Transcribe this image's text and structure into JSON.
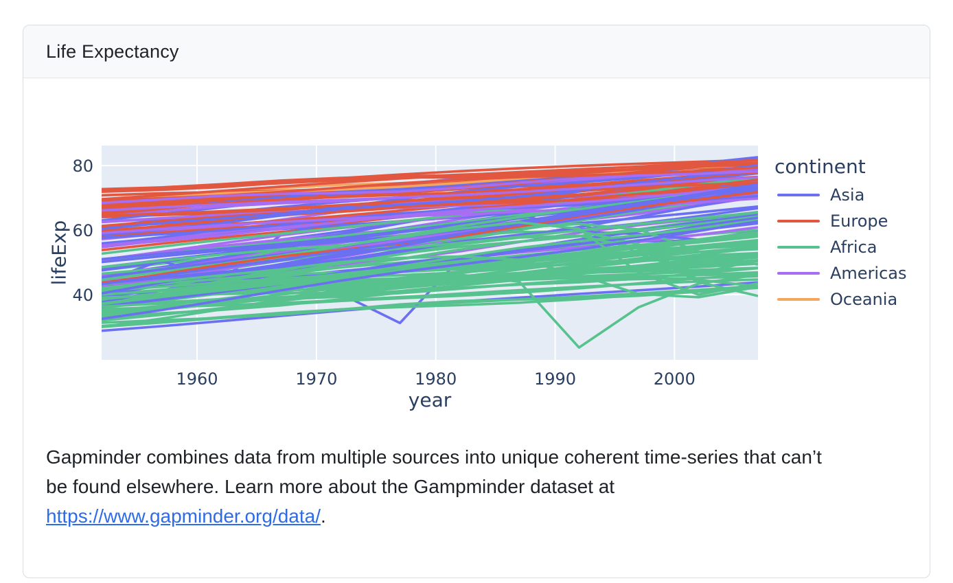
{
  "card": {
    "title": "Life Expectancy"
  },
  "description": {
    "text_before_link": "Gapminder combines data from multiple sources into unique coherent time-series that can’t be found elsewhere. Learn more about the Gampminder dataset at ",
    "link_text": "https://www.gapminder.org/data/",
    "text_after_link": "."
  },
  "chart_data": {
    "type": "line",
    "title": "",
    "xlabel": "year",
    "ylabel": "lifeExp",
    "x_range": [
      1952,
      2007
    ],
    "y_range": [
      19.8,
      86.2
    ],
    "x_ticks": [
      1960,
      1970,
      1980,
      1990,
      2000
    ],
    "y_ticks": [
      40,
      60,
      80
    ],
    "grid": true,
    "plot_bg": "#e5ecf6",
    "grid_color": "#ffffff",
    "text_color": "#2a3f5f",
    "line_width": 3.6,
    "years": [
      1952,
      1957,
      1962,
      1967,
      1972,
      1977,
      1982,
      1987,
      1992,
      1997,
      2002,
      2007
    ],
    "colors": {
      "As": "#6b70f2",
      "Eu": "#e2573f",
      "Af": "#57c28e",
      "Am": "#a76df2",
      "Oc": "#f6a55f"
    },
    "legend": {
      "title": "continent",
      "position": "right",
      "entries": [
        {
          "label": "Asia",
          "color": "#6b70f2"
        },
        {
          "label": "Europe",
          "color": "#e2573f"
        },
        {
          "label": "Africa",
          "color": "#57c28e"
        },
        {
          "label": "Americas",
          "color": "#a76df2"
        },
        {
          "label": "Oceania",
          "color": "#f6a55f"
        }
      ]
    },
    "lines": [
      [
        "As",
        [
          28.8,
          43.8
        ]
      ],
      [
        "Eu",
        [
          55.2,
          76.4
        ]
      ],
      [
        "Af",
        [
          43.1,
          72.3
        ]
      ],
      [
        "Af",
        [
          30.0,
          42.7
        ]
      ],
      [
        "Am",
        [
          62.5,
          75.3
        ]
      ],
      [
        "Oc",
        [
          69.1,
          81.2
        ]
      ],
      [
        "Eu",
        [
          66.8,
          79.8
        ]
      ],
      [
        "As",
        [
          50.9,
          75.6
        ]
      ],
      [
        "As",
        [
          37.5,
          64.1
        ]
      ],
      [
        "Eu",
        [
          68.0,
          79.4
        ]
      ],
      [
        "Af",
        [
          38.2,
          56.7
        ]
      ],
      [
        "Am",
        [
          40.4,
          65.6
        ]
      ],
      [
        "Eu",
        [
          53.8,
          74.9
        ]
      ],
      [
        "Af",
        [
          47.6,
          49.6,
          51.5,
          53.3,
          56.0,
          59.3,
          61.5,
          63.6,
          62.7,
          52.6,
          46.6,
          50.7
        ]
      ],
      [
        "Am",
        [
          50.9,
          72.4
        ]
      ],
      [
        "Eu",
        [
          59.6,
          73.0
        ]
      ],
      [
        "Af",
        [
          32.0,
          52.3
        ]
      ],
      [
        "Af",
        [
          39.0,
          49.6
        ]
      ],
      [
        "As",
        [
          39.4,
          41.4,
          43.4,
          45.4,
          40.3,
          31.2,
          51.0,
          53.9,
          55.8,
          56.5,
          56.8,
          59.7
        ]
      ],
      [
        "Af",
        [
          38.5,
          50.4
        ]
      ],
      [
        "Am",
        [
          68.8,
          80.7
        ]
      ],
      [
        "Af",
        [
          35.5,
          44.7
        ]
      ],
      [
        "Af",
        [
          38.1,
          50.7
        ]
      ],
      [
        "Am",
        [
          54.7,
          78.6
        ]
      ],
      [
        "As",
        [
          44.0,
          50.5,
          44.5,
          58.4,
          63.1,
          64.0,
          65.5,
          67.3,
          68.7,
          70.4,
          72.0,
          73.0
        ]
      ],
      [
        "Am",
        [
          50.6,
          72.9
        ]
      ],
      [
        "Af",
        [
          40.7,
          65.2
        ]
      ],
      [
        "Af",
        [
          39.1,
          46.5
        ]
      ],
      [
        "Af",
        [
          42.1,
          55.3
        ]
      ],
      [
        "Am",
        [
          57.2,
          78.8
        ]
      ],
      [
        "Af",
        [
          40.5,
          48.3
        ]
      ],
      [
        "Eu",
        [
          61.2,
          75.7
        ]
      ],
      [
        "Am",
        [
          59.4,
          78.3
        ]
      ],
      [
        "Eu",
        [
          66.9,
          76.5
        ]
      ],
      [
        "Eu",
        [
          70.8,
          78.3
        ]
      ],
      [
        "Af",
        [
          34.8,
          54.8
        ]
      ],
      [
        "Am",
        [
          45.9,
          72.2
        ]
      ],
      [
        "Am",
        [
          48.4,
          75.0
        ]
      ],
      [
        "Af",
        [
          41.9,
          71.3
        ]
      ],
      [
        "Am",
        [
          45.3,
          71.9
        ]
      ],
      [
        "Af",
        [
          34.5,
          51.6
        ]
      ],
      [
        "Af",
        [
          35.9,
          58.0
        ]
      ],
      [
        "Af",
        [
          34.1,
          52.9
        ]
      ],
      [
        "Eu",
        [
          66.6,
          79.3
        ]
      ],
      [
        "Eu",
        [
          67.4,
          80.7
        ]
      ],
      [
        "Af",
        [
          37.0,
          56.7
        ]
      ],
      [
        "Af",
        [
          30.0,
          59.4
        ]
      ],
      [
        "Eu",
        [
          67.5,
          79.4
        ]
      ],
      [
        "Af",
        [
          43.1,
          60.0
        ]
      ],
      [
        "Eu",
        [
          65.9,
          79.5
        ]
      ],
      [
        "Am",
        [
          42.0,
          70.3
        ]
      ],
      [
        "Af",
        [
          33.6,
          56.0
        ]
      ],
      [
        "Af",
        [
          32.5,
          46.4
        ]
      ],
      [
        "Am",
        [
          37.6,
          60.9
        ]
      ],
      [
        "Am",
        [
          41.9,
          70.2
        ]
      ],
      [
        "As",
        [
          61.0,
          82.2
        ]
      ],
      [
        "Eu",
        [
          64.0,
          73.3
        ]
      ],
      [
        "Eu",
        [
          72.5,
          81.8
        ]
      ],
      [
        "As",
        [
          37.4,
          64.7
        ]
      ],
      [
        "As",
        [
          37.5,
          70.6
        ]
      ],
      [
        "As",
        [
          44.9,
          71.0
        ]
      ],
      [
        "As",
        [
          45.3,
          48.4,
          51.5,
          54.5,
          57.0,
          60.4,
          62.5,
          65.0,
          59.5,
          58.8,
          57.0,
          59.5
        ]
      ],
      [
        "Eu",
        [
          66.9,
          78.9
        ]
      ],
      [
        "As",
        [
          65.4,
          80.7
        ]
      ],
      [
        "Eu",
        [
          65.9,
          80.5
        ]
      ],
      [
        "Am",
        [
          58.5,
          72.6
        ]
      ],
      [
        "As",
        [
          63.0,
          82.6
        ]
      ],
      [
        "As",
        [
          43.2,
          72.5
        ]
      ],
      [
        "Af",
        [
          42.3,
          54.1
        ]
      ],
      [
        "As",
        [
          50.1,
          67.3
        ]
      ],
      [
        "As",
        [
          47.5,
          78.6
        ]
      ],
      [
        "As",
        [
          55.6,
          77.6
        ]
      ],
      [
        "As",
        [
          55.9,
          71.9
        ]
      ],
      [
        "Af",
        [
          42.1,
          45.5,
          49.3,
          54.1,
          55.1,
          57.2,
          58.4,
          59.4,
          59.7,
          55.6,
          44.6,
          42.6
        ]
      ],
      [
        "Af",
        [
          38.5,
          45.7
        ]
      ],
      [
        "Af",
        [
          42.7,
          74.0
        ]
      ],
      [
        "Af",
        [
          36.7,
          59.4
        ]
      ],
      [
        "Af",
        [
          36.3,
          48.3
        ]
      ],
      [
        "As",
        [
          48.5,
          74.2
        ]
      ],
      [
        "Af",
        [
          33.7,
          54.5
        ]
      ],
      [
        "Af",
        [
          40.5,
          64.2
        ]
      ],
      [
        "Af",
        [
          50.9,
          72.8
        ]
      ],
      [
        "Am",
        [
          50.8,
          76.2
        ]
      ],
      [
        "As",
        [
          42.2,
          66.8
        ]
      ],
      [
        "Eu",
        [
          59.2,
          74.5
        ]
      ],
      [
        "Af",
        [
          42.9,
          71.2
        ]
      ],
      [
        "Af",
        [
          31.3,
          42.1
        ]
      ],
      [
        "As",
        [
          36.3,
          62.1
        ]
      ],
      [
        "Af",
        [
          41.7,
          52.9
        ]
      ],
      [
        "As",
        [
          36.2,
          63.8
        ]
      ],
      [
        "Eu",
        [
          72.1,
          79.8
        ]
      ],
      [
        "Oc",
        [
          69.4,
          80.2
        ]
      ],
      [
        "Am",
        [
          42.3,
          72.9
        ]
      ],
      [
        "Af",
        [
          37.4,
          56.9
        ]
      ],
      [
        "Af",
        [
          36.3,
          46.9
        ]
      ],
      [
        "Eu",
        [
          72.7,
          80.2
        ]
      ],
      [
        "As",
        [
          37.6,
          75.6
        ]
      ],
      [
        "As",
        [
          43.4,
          65.5
        ]
      ],
      [
        "Am",
        [
          55.2,
          75.5
        ]
      ],
      [
        "Am",
        [
          62.6,
          71.8
        ]
      ],
      [
        "Am",
        [
          43.9,
          71.4
        ]
      ],
      [
        "As",
        [
          47.8,
          71.7
        ]
      ],
      [
        "Eu",
        [
          61.3,
          75.6
        ]
      ],
      [
        "Eu",
        [
          59.8,
          78.1
        ]
      ],
      [
        "Am",
        [
          64.3,
          78.7
        ]
      ],
      [
        "Af",
        [
          52.7,
          76.4
        ]
      ],
      [
        "Eu",
        [
          61.1,
          72.5
        ]
      ],
      [
        "Af",
        [
          40.0,
          41.5,
          43.0,
          44.1,
          44.6,
          45.0,
          46.2,
          44.0,
          23.6,
          36.1,
          43.4,
          46.2
        ]
      ],
      [
        "Af",
        [
          46.5,
          65.5
        ]
      ],
      [
        "As",
        [
          39.9,
          72.8
        ]
      ],
      [
        "Af",
        [
          37.2,
          63.1
        ]
      ],
      [
        "Eu",
        [
          58.0,
          74.0
        ]
      ],
      [
        "Af",
        [
          30.3,
          42.6
        ]
      ],
      [
        "As",
        [
          60.4,
          80.0
        ]
      ],
      [
        "Eu",
        [
          64.4,
          74.7
        ]
      ],
      [
        "Eu",
        [
          65.6,
          77.9
        ]
      ],
      [
        "Af",
        [
          33.0,
          48.2
        ]
      ],
      [
        "Af",
        [
          45.0,
          48.0,
          50.0,
          51.9,
          53.7,
          55.5,
          58.2,
          60.8,
          61.9,
          60.2,
          53.4,
          49.3
        ]
      ],
      [
        "Eu",
        [
          64.9,
          80.9
        ]
      ],
      [
        "As",
        [
          57.6,
          72.4
        ]
      ],
      [
        "Af",
        [
          38.6,
          58.6
        ]
      ],
      [
        "Af",
        [
          41.4,
          43.4,
          44.9,
          46.6,
          49.6,
          52.5,
          55.6,
          57.7,
          58.3,
          54.3,
          43.9,
          39.6
        ]
      ],
      [
        "Eu",
        [
          71.9,
          80.9
        ]
      ],
      [
        "Eu",
        [
          69.6,
          81.7
        ]
      ],
      [
        "As",
        [
          45.2,
          74.1
        ]
      ],
      [
        "As",
        [
          58.5,
          78.4
        ]
      ],
      [
        "Af",
        [
          41.2,
          52.5
        ]
      ],
      [
        "As",
        [
          51.0,
          70.6
        ]
      ],
      [
        "Af",
        [
          38.6,
          58.4
        ]
      ],
      [
        "Am",
        [
          59.1,
          69.8
        ]
      ],
      [
        "Af",
        [
          44.6,
          73.9
        ]
      ],
      [
        "Eu",
        [
          43.6,
          71.8
        ]
      ],
      [
        "Af",
        [
          40.0,
          51.5
        ]
      ],
      [
        "Eu",
        [
          69.2,
          79.4
        ]
      ],
      [
        "Am",
        [
          68.4,
          78.2
        ]
      ],
      [
        "Am",
        [
          66.1,
          76.4
        ]
      ],
      [
        "Am",
        [
          55.1,
          73.7
        ]
      ],
      [
        "As",
        [
          40.4,
          74.2
        ]
      ],
      [
        "As",
        [
          43.2,
          73.4
        ]
      ],
      [
        "As",
        [
          32.5,
          62.7
        ]
      ],
      [
        "Af",
        [
          42.0,
          44.1,
          46.0,
          47.8,
          50.1,
          51.4,
          51.8,
          50.8,
          46.1,
          40.2,
          39.2,
          42.4
        ]
      ],
      [
        "Af",
        [
          48.5,
          50.5,
          52.4,
          54.0,
          55.2,
          57.7,
          60.4,
          62.4,
          60.4,
          46.8,
          40.0,
          43.5
        ]
      ]
    ]
  }
}
